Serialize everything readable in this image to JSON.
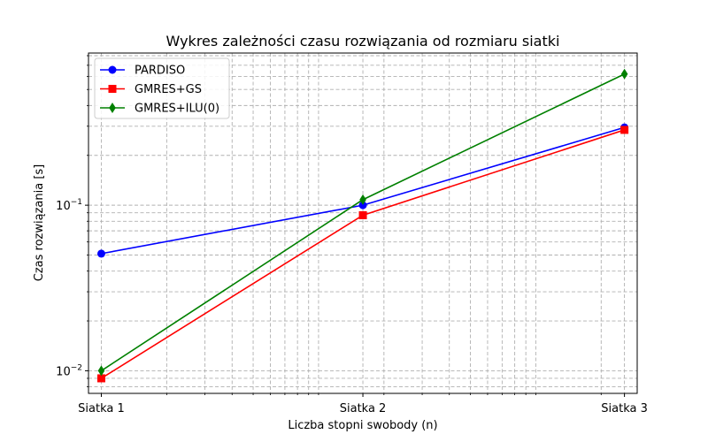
{
  "chart_data": {
    "type": "line",
    "title": "Wykres zależności czasu rozwiązania od rozmiaru siatki",
    "xlabel": "Liczba stopni swobody (n)",
    "ylabel": "Czas rozwiązania [s]",
    "x_scale": "log",
    "y_scale": "log",
    "grid": "both (major and minor), dashed",
    "legend_position": "upper-left",
    "x_ticks": [
      {
        "value": 1,
        "label": "Siatka 1"
      },
      {
        "value": 16,
        "label": "Siatka 2"
      },
      {
        "value": 256,
        "label": "Siatka 3"
      }
    ],
    "x_minor_ticks": [
      2,
      3,
      4,
      5,
      6,
      7,
      8,
      9,
      10,
      20,
      30,
      40,
      50,
      60,
      70,
      80,
      90,
      100,
      200
    ],
    "x_range": [
      0.873,
      293
    ],
    "y_ticks": [
      {
        "value": 0.01,
        "base": "10",
        "exp": "−2"
      },
      {
        "value": 0.1,
        "base": "10",
        "exp": "−1"
      }
    ],
    "y_minor_ticks": [
      0.008,
      0.009,
      0.02,
      0.03,
      0.04,
      0.05,
      0.06,
      0.07,
      0.08,
      0.09,
      0.2,
      0.3,
      0.4,
      0.5,
      0.6,
      0.7,
      0.8
    ],
    "y_range": [
      0.0073,
      0.83
    ],
    "x": [
      1,
      16,
      256
    ],
    "series": [
      {
        "name": "PARDISO",
        "values": [
          0.051,
          0.1,
          0.295
        ],
        "color": "#0000ff",
        "marker": "circle"
      },
      {
        "name": "GMRES+GS",
        "values": [
          0.009,
          0.087,
          0.285
        ],
        "color": "#ff0000",
        "marker": "square"
      },
      {
        "name": "GMRES+ILU(0)",
        "values": [
          0.01,
          0.108,
          0.62
        ],
        "color": "#008000",
        "marker": "diamond"
      }
    ]
  }
}
